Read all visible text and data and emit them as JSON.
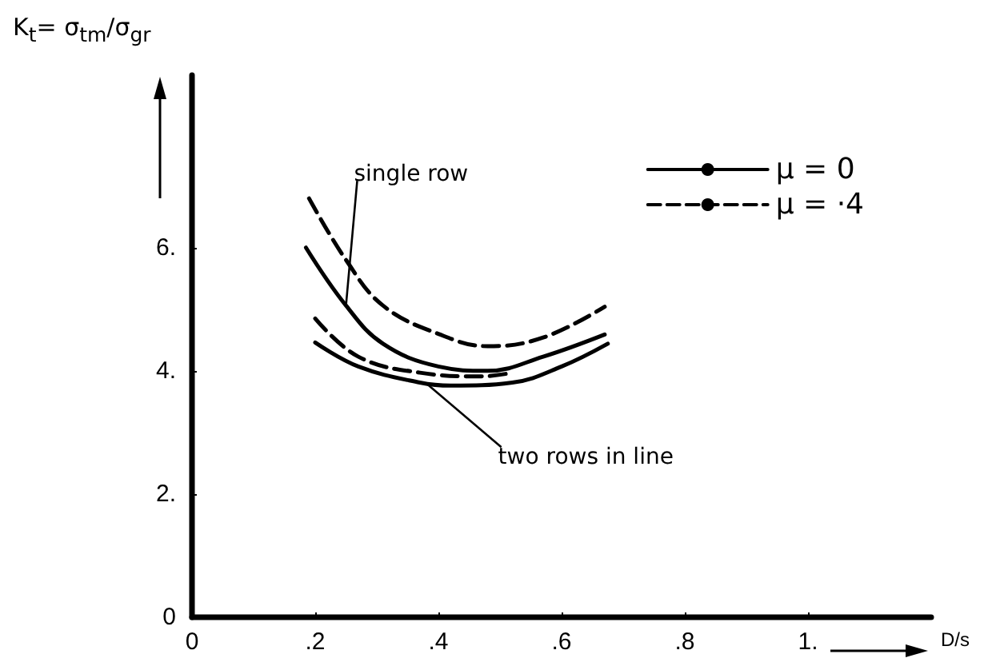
{
  "chart_data": {
    "type": "line",
    "xlabel": "D/s",
    "ylabel": "K$_{t}$= σ$_{tm}$/σ$_{gr}$",
    "xlim": [
      0,
      1.2
    ],
    "ylim": [
      0,
      8.8
    ],
    "xticks": [
      0,
      {
        "value": 0.2,
        "label": ".2"
      },
      {
        "value": 0.4,
        "label": ".4"
      },
      {
        "value": 0.6,
        "label": ".6"
      },
      {
        "value": 0.8,
        "label": ".8"
      },
      {
        "value": 1,
        "label": "1."
      }
    ],
    "yticks": [
      0,
      {
        "value": 2,
        "label": "2."
      },
      {
        "value": 4,
        "label": "4."
      },
      {
        "value": 6,
        "label": "6."
      }
    ],
    "grid": false,
    "legend": "top right",
    "marker": "none",
    "series": [
      {
        "name": "μ = 0",
        "color": "#000000",
        "line_style": "solid",
        "x": [
          0.185,
          0.25,
          0.31,
          0.4,
          0.48,
          0.57,
          0.67
        ],
        "values": [
          6.0,
          5.06,
          4.44,
          4.07,
          4.0,
          4.23,
          4.59
        ]
      },
      {
        "name": "μ = ·4",
        "color": "#000000",
        "line_style": "dashed",
        "x": [
          0.19,
          0.25,
          0.31,
          0.4,
          0.48,
          0.57,
          0.67
        ],
        "values": [
          6.8,
          5.8,
          5.06,
          4.6,
          4.4,
          4.54,
          5.04
        ]
      },
      {
        "color": "#000000",
        "line_style": "solid",
        "x": [
          0.2,
          0.27,
          0.37,
          0.42,
          0.52,
          0.6,
          0.675
        ],
        "values": [
          4.46,
          4.07,
          3.81,
          3.76,
          3.81,
          4.07,
          4.44
        ]
      },
      {
        "color": "#000000",
        "line_style": "dashed",
        "x": [
          0.2,
          0.27,
          0.37,
          0.47,
          0.52
        ],
        "values": [
          4.85,
          4.23,
          3.97,
          3.91,
          3.97
        ]
      }
    ],
    "annotations": [
      {
        "text": "single row",
        "x": 0.25,
        "y": 5.06
      },
      {
        "text": "two rows in line",
        "x": 0.38,
        "y": 3.8
      }
    ]
  }
}
